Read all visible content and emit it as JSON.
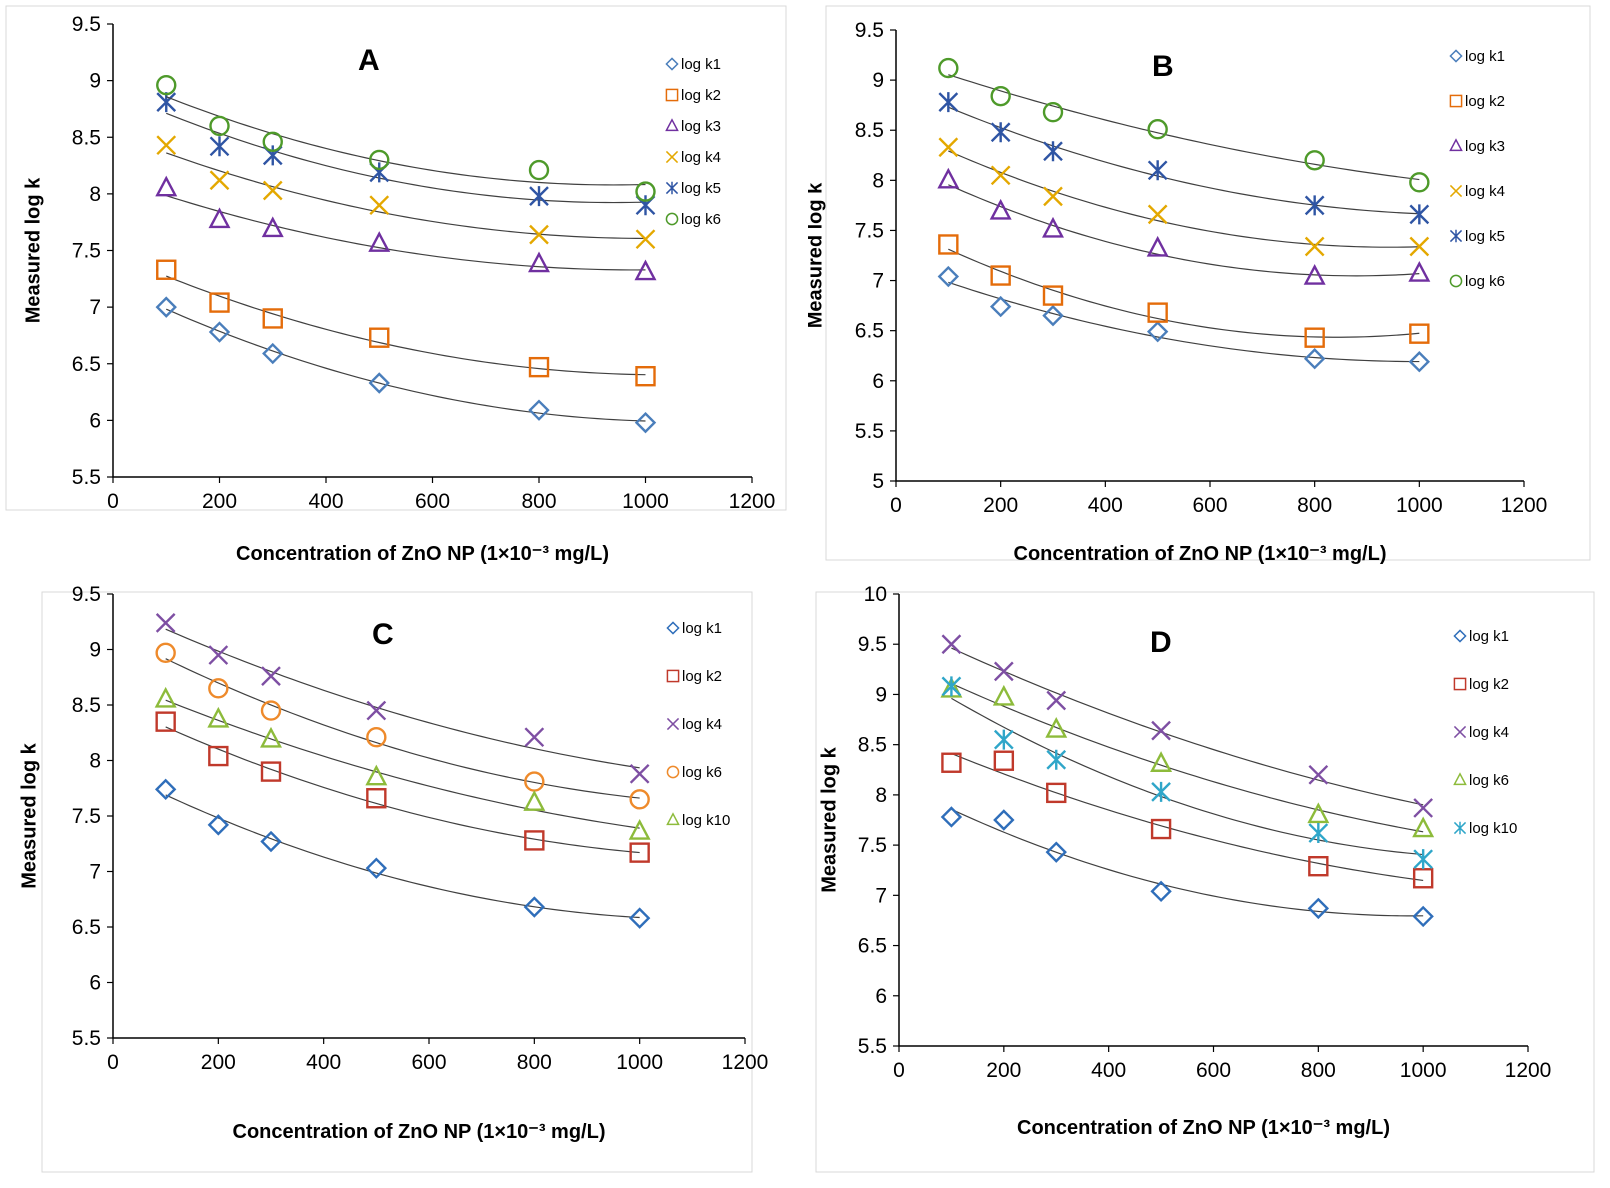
{
  "chart_data": [
    {
      "type": "scatter",
      "title": "A",
      "xlabel": "Concentration of ZnO NP (1×10⁻³ mg/L)",
      "ylabel": "Measured log k",
      "xlim": [
        0,
        1200
      ],
      "ylim": [
        5.5,
        9.5
      ],
      "xticks": [
        "0",
        "200",
        "400",
        "600",
        "800",
        "1000",
        "1200"
      ],
      "yticks": [
        "5.5",
        "6",
        "6.5",
        "7",
        "7.5",
        "8",
        "8.5",
        "9",
        "9.5"
      ],
      "x": [
        100,
        200,
        300,
        500,
        800,
        1000
      ],
      "legend_position": "right",
      "series": [
        {
          "name": "log k1",
          "marker": "diamond",
          "color": "#4a7ebb",
          "values": [
            7.0,
            6.78,
            6.59,
            6.33,
            6.09,
            5.98
          ]
        },
        {
          "name": "log k2",
          "marker": "square",
          "color": "#e46c0a",
          "values": [
            7.33,
            7.04,
            6.9,
            6.73,
            6.47,
            6.39
          ]
        },
        {
          "name": "log k3",
          "marker": "triangle",
          "color": "#7030a0",
          "values": [
            8.05,
            7.77,
            7.69,
            7.56,
            7.38,
            7.31
          ]
        },
        {
          "name": "log k4",
          "marker": "x",
          "color": "#e4a800",
          "values": [
            8.43,
            8.12,
            8.03,
            7.9,
            7.64,
            7.6
          ]
        },
        {
          "name": "log k5",
          "marker": "star",
          "color": "#2f55a4",
          "values": [
            8.81,
            8.42,
            8.34,
            8.19,
            7.98,
            7.9
          ]
        },
        {
          "name": "log k6",
          "marker": "circle",
          "color": "#4e9a2a",
          "values": [
            8.96,
            8.6,
            8.46,
            8.3,
            8.21,
            8.02
          ]
        }
      ]
    },
    {
      "type": "scatter",
      "title": "B",
      "xlabel": "Concentration of ZnO NP (1×10⁻³ mg/L)",
      "ylabel": "Measured log k",
      "xlim": [
        0,
        1200
      ],
      "ylim": [
        5,
        9.5
      ],
      "xticks": [
        "0",
        "200",
        "400",
        "600",
        "800",
        "1000",
        "1200"
      ],
      "yticks": [
        "5",
        "5.5",
        "6",
        "6.5",
        "7",
        "7.5",
        "8",
        "8.5",
        "9",
        "9.5"
      ],
      "x": [
        100,
        200,
        300,
        500,
        800,
        1000
      ],
      "legend_position": "right",
      "series": [
        {
          "name": "log k1",
          "marker": "diamond",
          "color": "#4a7ebb",
          "values": [
            7.04,
            6.74,
            6.65,
            6.49,
            6.22,
            6.19
          ]
        },
        {
          "name": "log k2",
          "marker": "square",
          "color": "#e46c0a",
          "values": [
            7.36,
            7.05,
            6.85,
            6.68,
            6.43,
            6.47
          ]
        },
        {
          "name": "log k3",
          "marker": "triangle",
          "color": "#7030a0",
          "values": [
            8.0,
            7.69,
            7.51,
            7.32,
            7.04,
            7.07
          ]
        },
        {
          "name": "log k4",
          "marker": "x",
          "color": "#e4a800",
          "values": [
            8.33,
            8.05,
            7.84,
            7.66,
            7.34,
            7.34
          ]
        },
        {
          "name": "log k5",
          "marker": "star",
          "color": "#2f55a4",
          "values": [
            8.78,
            8.48,
            8.29,
            8.1,
            7.75,
            7.66
          ]
        },
        {
          "name": "log k6",
          "marker": "circle",
          "color": "#4e9a2a",
          "values": [
            9.12,
            8.84,
            8.68,
            8.51,
            8.2,
            7.98
          ]
        }
      ]
    },
    {
      "type": "scatter",
      "title": "C",
      "xlabel": "Concentration of ZnO NP (1×10⁻³ mg/L)",
      "ylabel": "Measured log k",
      "xlim": [
        0,
        1200
      ],
      "ylim": [
        5.5,
        9.5
      ],
      "xticks": [
        "0",
        "200",
        "400",
        "600",
        "800",
        "1000",
        "1200"
      ],
      "yticks": [
        "5.5",
        "6",
        "6.5",
        "7",
        "7.5",
        "8",
        "8.5",
        "9",
        "9.5"
      ],
      "x": [
        100,
        200,
        300,
        500,
        800,
        1000
      ],
      "legend_position": "right",
      "series": [
        {
          "name": "log k1",
          "marker": "diamond",
          "color": "#2f6eba",
          "values": [
            7.74,
            7.42,
            7.27,
            7.03,
            6.68,
            6.58
          ]
        },
        {
          "name": "log k2",
          "marker": "square",
          "color": "#c0392b",
          "values": [
            8.35,
            8.04,
            7.9,
            7.66,
            7.28,
            7.17
          ]
        },
        {
          "name": "log k4",
          "marker": "x",
          "color": "#7e4fa3",
          "values": [
            9.24,
            8.95,
            8.76,
            8.45,
            8.21,
            7.88
          ]
        },
        {
          "name": "log k6",
          "marker": "circle",
          "color": "#ee8a2b",
          "values": [
            8.97,
            8.65,
            8.45,
            8.21,
            7.81,
            7.65
          ]
        },
        {
          "name": "log k10",
          "marker": "triangle",
          "color": "#8dbb3b",
          "values": [
            8.55,
            8.37,
            8.19,
            7.85,
            7.62,
            7.36
          ]
        }
      ]
    },
    {
      "type": "scatter",
      "title": "D",
      "xlabel": "Concentration of ZnO NP (1×10⁻³ mg/L)",
      "ylabel": "Measured log k",
      "xlim": [
        0,
        1200
      ],
      "ylim": [
        5.5,
        10
      ],
      "xticks": [
        "0",
        "200",
        "400",
        "600",
        "800",
        "1000",
        "1200"
      ],
      "yticks": [
        "5.5",
        "6",
        "6.5",
        "7",
        "7.5",
        "8",
        "8.5",
        "9",
        "9.5",
        "10"
      ],
      "x": [
        100,
        200,
        300,
        500,
        800,
        1000
      ],
      "legend_position": "right",
      "series": [
        {
          "name": "log k1",
          "marker": "diamond",
          "color": "#2f6eba",
          "values": [
            7.78,
            7.75,
            7.43,
            7.04,
            6.87,
            6.79
          ]
        },
        {
          "name": "log k2",
          "marker": "square",
          "color": "#c0392b",
          "values": [
            8.32,
            8.34,
            8.02,
            7.66,
            7.29,
            7.17
          ]
        },
        {
          "name": "log k4",
          "marker": "x",
          "color": "#7e4fa3",
          "values": [
            9.5,
            9.23,
            8.94,
            8.64,
            8.2,
            7.87
          ]
        },
        {
          "name": "log k6",
          "marker": "triangle",
          "color": "#8dbb3b",
          "values": [
            9.05,
            8.97,
            8.65,
            8.31,
            7.8,
            7.66
          ]
        },
        {
          "name": "log k10",
          "marker": "star",
          "color": "#2fa6c9",
          "values": [
            9.08,
            8.55,
            8.35,
            8.03,
            7.62,
            7.36
          ]
        }
      ]
    }
  ]
}
